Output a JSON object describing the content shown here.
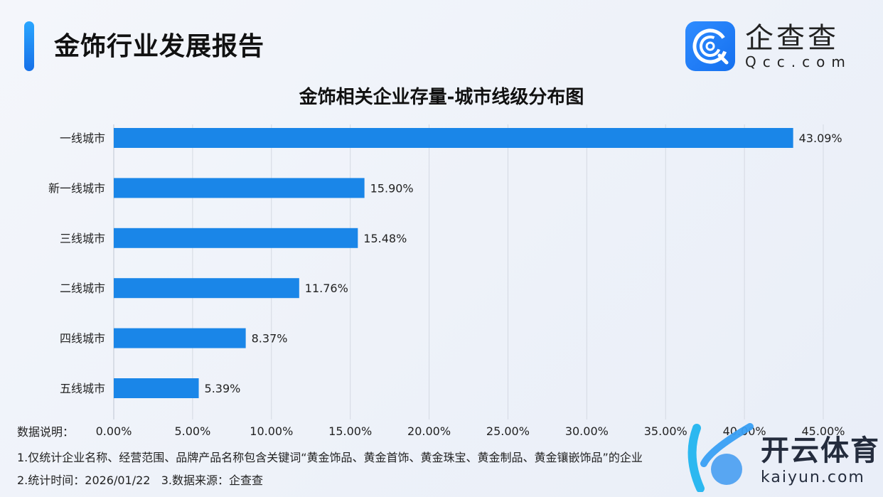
{
  "header": {
    "title": "金饰行业发展报告"
  },
  "logo": {
    "cn": "企查查",
    "en": "Qcc.com"
  },
  "watermark": {
    "cn": "开云体育",
    "en": "kaiyun.com"
  },
  "colors": {
    "bar": "#1a86e8",
    "accent": "#1f8cf0",
    "grid": "#d4d9e2"
  },
  "chart_data": {
    "type": "bar",
    "orientation": "horizontal",
    "title": "金饰相关企业存量-城市线级分布图",
    "categories": [
      "一线城市",
      "新一线城市",
      "三线城市",
      "二线城市",
      "四线城市",
      "五线城市"
    ],
    "values": [
      43.09,
      15.9,
      15.48,
      11.76,
      8.37,
      5.39
    ],
    "value_labels": [
      "43.09%",
      "15.90%",
      "15.48%",
      "11.76%",
      "8.37%",
      "5.39%"
    ],
    "xlim": [
      0,
      45
    ],
    "xticks": [
      "0.00%",
      "5.00%",
      "10.00%",
      "15.00%",
      "20.00%",
      "25.00%",
      "30.00%",
      "35.00%",
      "40.00%",
      "45.00%"
    ],
    "grid": true,
    "xlabel": "",
    "ylabel": ""
  },
  "footer": {
    "label": "数据说明：",
    "note1": "1.仅统计企业名称、经营范围、品牌产品名称包含关键词“黄金饰品、黄金首饰、黄金珠宝、黄金制品、黄金镶嵌饰品”的企业",
    "note2": "2.统计时间：2026/01/22   3.数据来源：企查查"
  }
}
